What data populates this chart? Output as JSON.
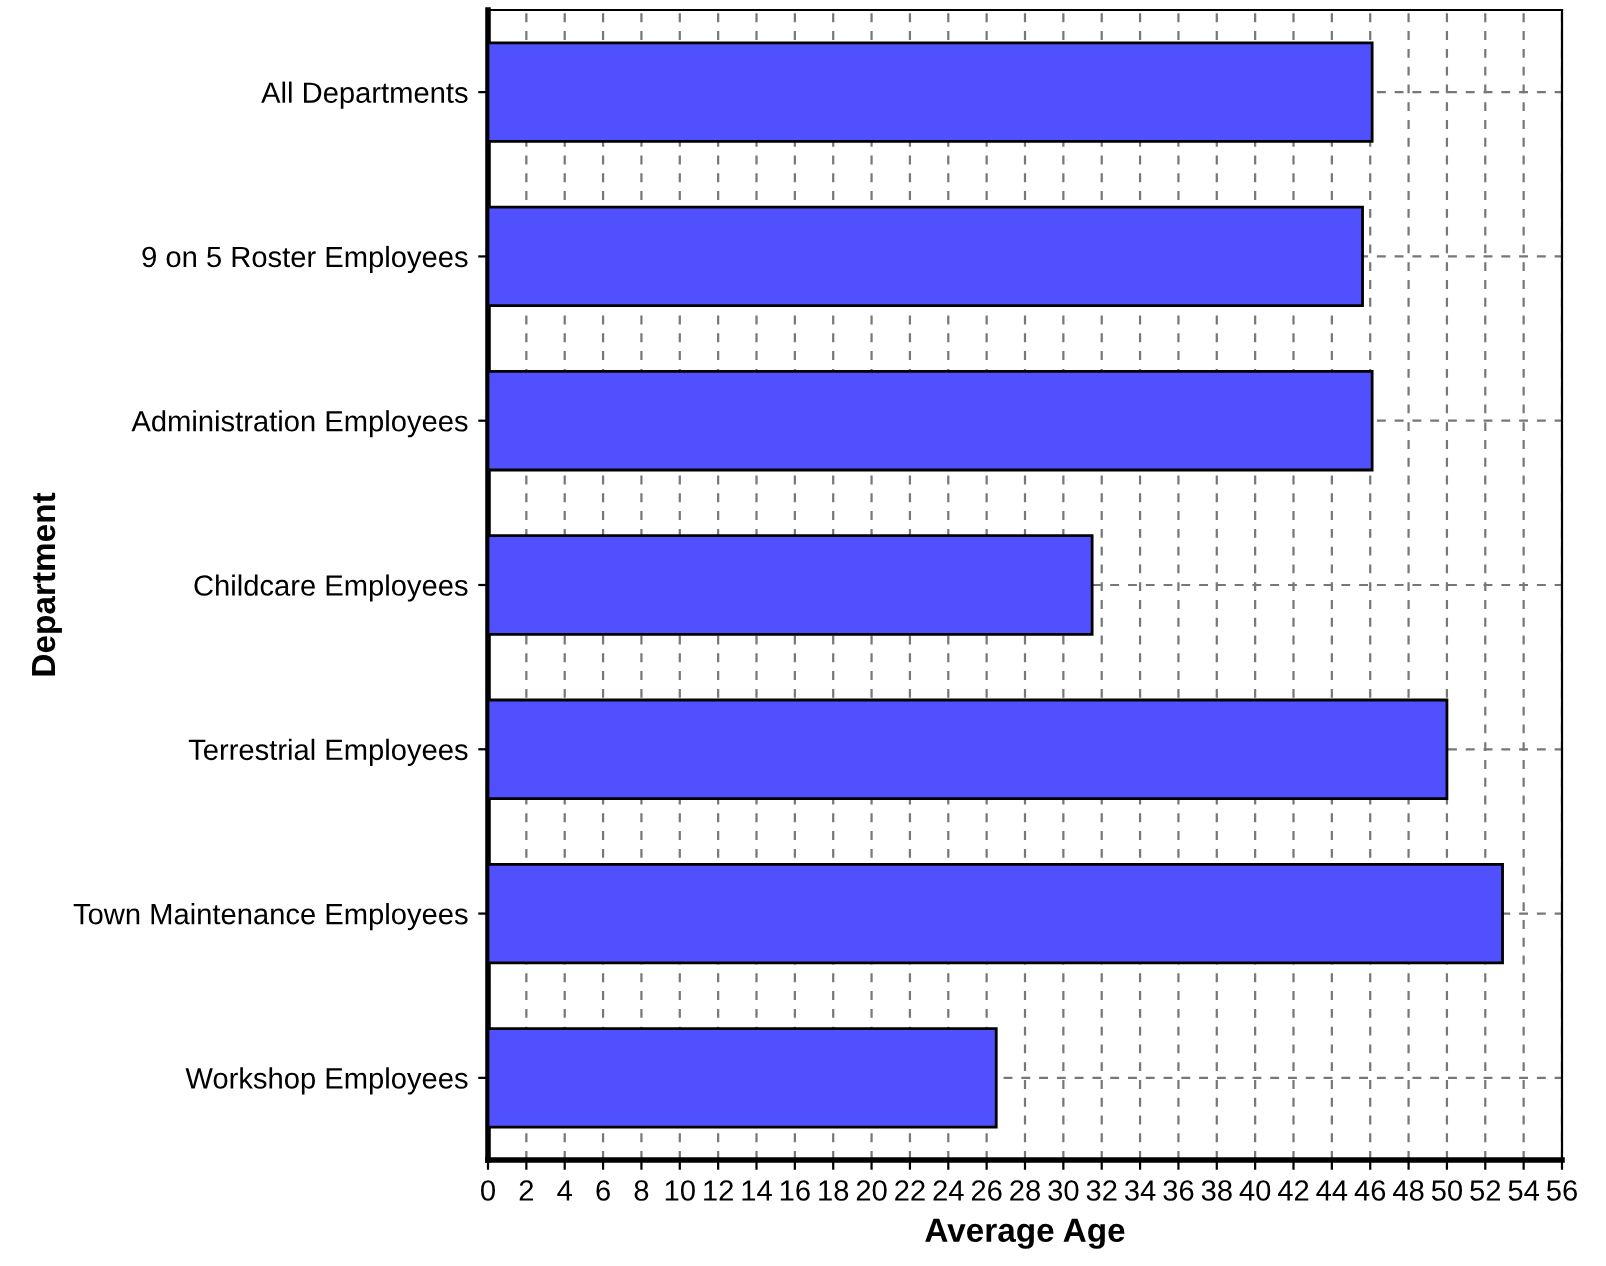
{
  "chart_data": {
    "type": "bar",
    "orientation": "horizontal",
    "xlabel": "Average Age",
    "ylabel": "Department",
    "categories": [
      "All Departments",
      "9 on 5 Roster Employees",
      "Administration Employees",
      "Childcare Employees",
      "Terrestrial Employees",
      "Town Maintenance Employees",
      "Workshop Employees"
    ],
    "values": [
      46.1,
      45.6,
      46.1,
      31.5,
      50.0,
      52.9,
      26.5
    ],
    "color": "#5050ff",
    "xlim": [
      0,
      56
    ],
    "xticks": [
      0,
      2,
      4,
      6,
      8,
      10,
      12,
      14,
      16,
      18,
      20,
      22,
      24,
      26,
      28,
      30,
      32,
      34,
      36,
      38,
      40,
      42,
      44,
      46,
      48,
      50,
      52,
      54,
      56
    ],
    "grid": true,
    "legend": false
  }
}
